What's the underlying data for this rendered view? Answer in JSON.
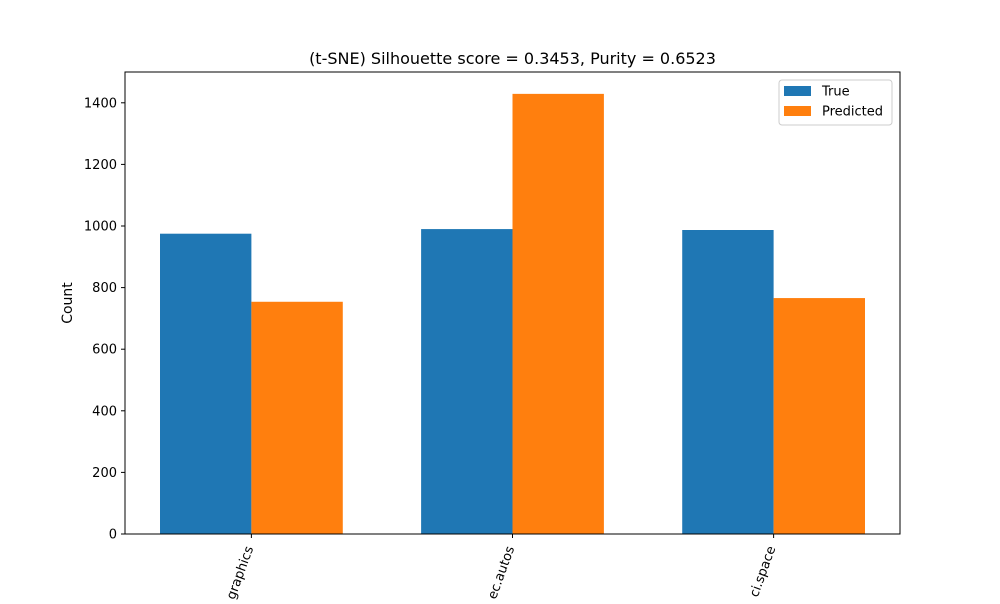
{
  "chart_data": {
    "type": "bar",
    "title": "(t-SNE) Silhouette score = 0.3453, Purity = 0.6523",
    "xlabel": "",
    "ylabel": "Count",
    "categories": [
      "graphics",
      "ec.autos",
      "ci.space"
    ],
    "series": [
      {
        "name": "True",
        "values": [
          975,
          990,
          987
        ],
        "color": "#1f77b4"
      },
      {
        "name": "Predicted",
        "values": [
          754,
          1429,
          766
        ],
        "color": "#ff7f0e"
      }
    ],
    "ylim": [
      0,
      1500
    ],
    "yticks": [
      0,
      200,
      400,
      600,
      800,
      1000,
      1200,
      1400
    ],
    "grid": false,
    "legend_position": "top-right",
    "tick_label_rotation": "rotated"
  }
}
